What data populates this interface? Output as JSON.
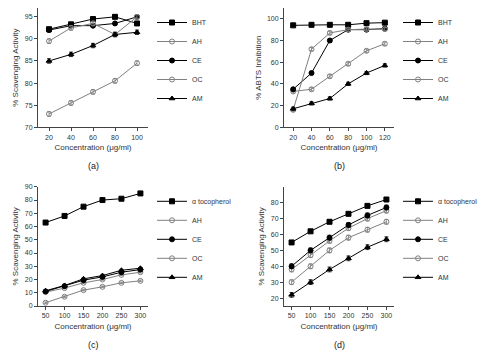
{
  "chart_data": [
    {
      "type": "line",
      "subtitle": "(a)",
      "xlabel": "Concentration (μg/ml)",
      "ylabel": "% Scavenging Activity",
      "x": [
        20,
        40,
        60,
        80,
        100
      ],
      "xlim": [
        10,
        110
      ],
      "ylim": [
        70,
        97
      ],
      "xticks": [
        20,
        40,
        60,
        80,
        100
      ],
      "yticks": [
        70,
        75,
        80,
        85,
        90,
        95
      ],
      "grid": false,
      "legend": "right",
      "series": [
        {
          "name": "BHT",
          "color": "black",
          "marker": "square",
          "values": [
            92.2,
            93.3,
            94.5,
            95.0,
            93.5
          ],
          "error": 0.4
        },
        {
          "name": "AH",
          "color": "gray",
          "marker": "circle-open",
          "values": [
            73.0,
            75.5,
            78.0,
            80.5,
            84.5
          ],
          "error": 0.5
        },
        {
          "name": "CE",
          "color": "black",
          "marker": "circle",
          "values": [
            92.0,
            93.0,
            93.0,
            93.5,
            95.0
          ],
          "error": 0.4
        },
        {
          "name": "OC",
          "color": "gray",
          "marker": "circle-open",
          "values": [
            89.5,
            92.5,
            93.5,
            91.0,
            95.0
          ],
          "error": 0.5
        },
        {
          "name": "AM",
          "color": "black",
          "marker": "triangle-up",
          "values": [
            85.0,
            86.5,
            88.5,
            91.0,
            91.5
          ],
          "error": 0.5
        }
      ]
    },
    {
      "type": "line",
      "subtitle": "(b)",
      "xlabel": "Concentration (μg/ml)",
      "ylabel": "% ABTS Inhibition",
      "x": [
        20,
        40,
        60,
        80,
        100,
        120
      ],
      "xlim": [
        10,
        130
      ],
      "ylim": [
        0,
        110
      ],
      "xticks": [
        20,
        40,
        60,
        80,
        100,
        120
      ],
      "yticks": [
        0,
        20,
        40,
        60,
        80,
        100
      ],
      "grid": false,
      "legend": "right",
      "series": [
        {
          "name": "BHT",
          "color": "black",
          "marker": "square",
          "values": [
            94.0,
            94.5,
            94.5,
            94.5,
            96.0,
            96.5
          ],
          "error": 0.5
        },
        {
          "name": "AH",
          "color": "gray",
          "marker": "circle-open",
          "values": [
            33.0,
            35.0,
            47.0,
            58.5,
            70.5,
            77.0
          ],
          "error": 1.5
        },
        {
          "name": "CE",
          "color": "black",
          "marker": "circle",
          "values": [
            35.0,
            50.0,
            80.0,
            90.0,
            90.0,
            91.0
          ],
          "error": 1.5
        },
        {
          "name": "OC",
          "color": "gray",
          "marker": "circle-open",
          "values": [
            16.0,
            72.0,
            87.0,
            90.0,
            90.5,
            90.5
          ],
          "error": 1.5
        },
        {
          "name": "AM",
          "color": "black",
          "marker": "triangle-up",
          "values": [
            17.0,
            22.0,
            26.5,
            40.0,
            50.0,
            57.0
          ],
          "error": 1.5
        }
      ]
    },
    {
      "type": "line",
      "subtitle": "(c)",
      "xlabel": "Concentration (μg/ml)",
      "ylabel": "% Scavenging Activity",
      "x": [
        50,
        100,
        150,
        200,
        250,
        300
      ],
      "xlim": [
        30,
        320
      ],
      "ylim": [
        0,
        90
      ],
      "xticks": [
        50,
        100,
        150,
        200,
        250,
        300
      ],
      "yticks": [
        0,
        10,
        20,
        30,
        40,
        50,
        60,
        70,
        80,
        90
      ],
      "grid": false,
      "legend": "right",
      "series": [
        {
          "name": "α tocopherol",
          "color": "black",
          "marker": "square",
          "values": [
            63.0,
            68.0,
            75.0,
            80.0,
            81.0,
            85.0
          ],
          "error": 0.5
        },
        {
          "name": "AH",
          "color": "gray",
          "marker": "circle-open",
          "values": [
            10.5,
            13.5,
            17.5,
            20.0,
            23.5,
            25.5
          ],
          "error": 0.6
        },
        {
          "name": "CE",
          "color": "black",
          "marker": "circle",
          "values": [
            11.0,
            15.0,
            19.5,
            22.0,
            25.5,
            27.5
          ],
          "error": 0.6
        },
        {
          "name": "OC",
          "color": "gray",
          "marker": "circle-open",
          "values": [
            2.5,
            7.0,
            12.0,
            14.5,
            17.5,
            19.0
          ],
          "error": 0.6
        },
        {
          "name": "AM",
          "color": "black",
          "marker": "triangle-up",
          "values": [
            11.5,
            15.5,
            20.5,
            23.0,
            27.0,
            28.5
          ],
          "error": 0.6
        }
      ]
    },
    {
      "type": "line",
      "subtitle": "(d)",
      "xlabel": "Concentration (μg/ml)",
      "ylabel": "% Scavenging Activity",
      "x": [
        50,
        100,
        150,
        200,
        250,
        300
      ],
      "xlim": [
        30,
        320
      ],
      "ylim": [
        15,
        90
      ],
      "xticks": [
        50,
        100,
        150,
        200,
        250,
        300
      ],
      "yticks": [
        20,
        30,
        40,
        50,
        60,
        70,
        80
      ],
      "grid": false,
      "legend": "right",
      "series": [
        {
          "name": "α tocopherol",
          "color": "black",
          "marker": "square",
          "values": [
            55.0,
            62.0,
            68.0,
            73.0,
            78.0,
            82.0
          ],
          "error": 1.0
        },
        {
          "name": "AH",
          "color": "gray",
          "marker": "circle-open",
          "values": [
            38.0,
            47.0,
            56.0,
            64.0,
            70.0,
            75.0
          ],
          "error": 1.5
        },
        {
          "name": "CE",
          "color": "black",
          "marker": "circle",
          "values": [
            40.0,
            50.0,
            58.0,
            66.0,
            72.0,
            77.0
          ],
          "error": 1.5
        },
        {
          "name": "OC",
          "color": "gray",
          "marker": "circle-open",
          "values": [
            30.0,
            40.0,
            50.0,
            58.0,
            63.0,
            68.0
          ],
          "error": 1.5
        },
        {
          "name": "AM",
          "color": "black",
          "marker": "triangle-up",
          "values": [
            22.0,
            30.0,
            38.0,
            45.0,
            52.0,
            57.0
          ],
          "error": 1.5
        }
      ]
    }
  ]
}
